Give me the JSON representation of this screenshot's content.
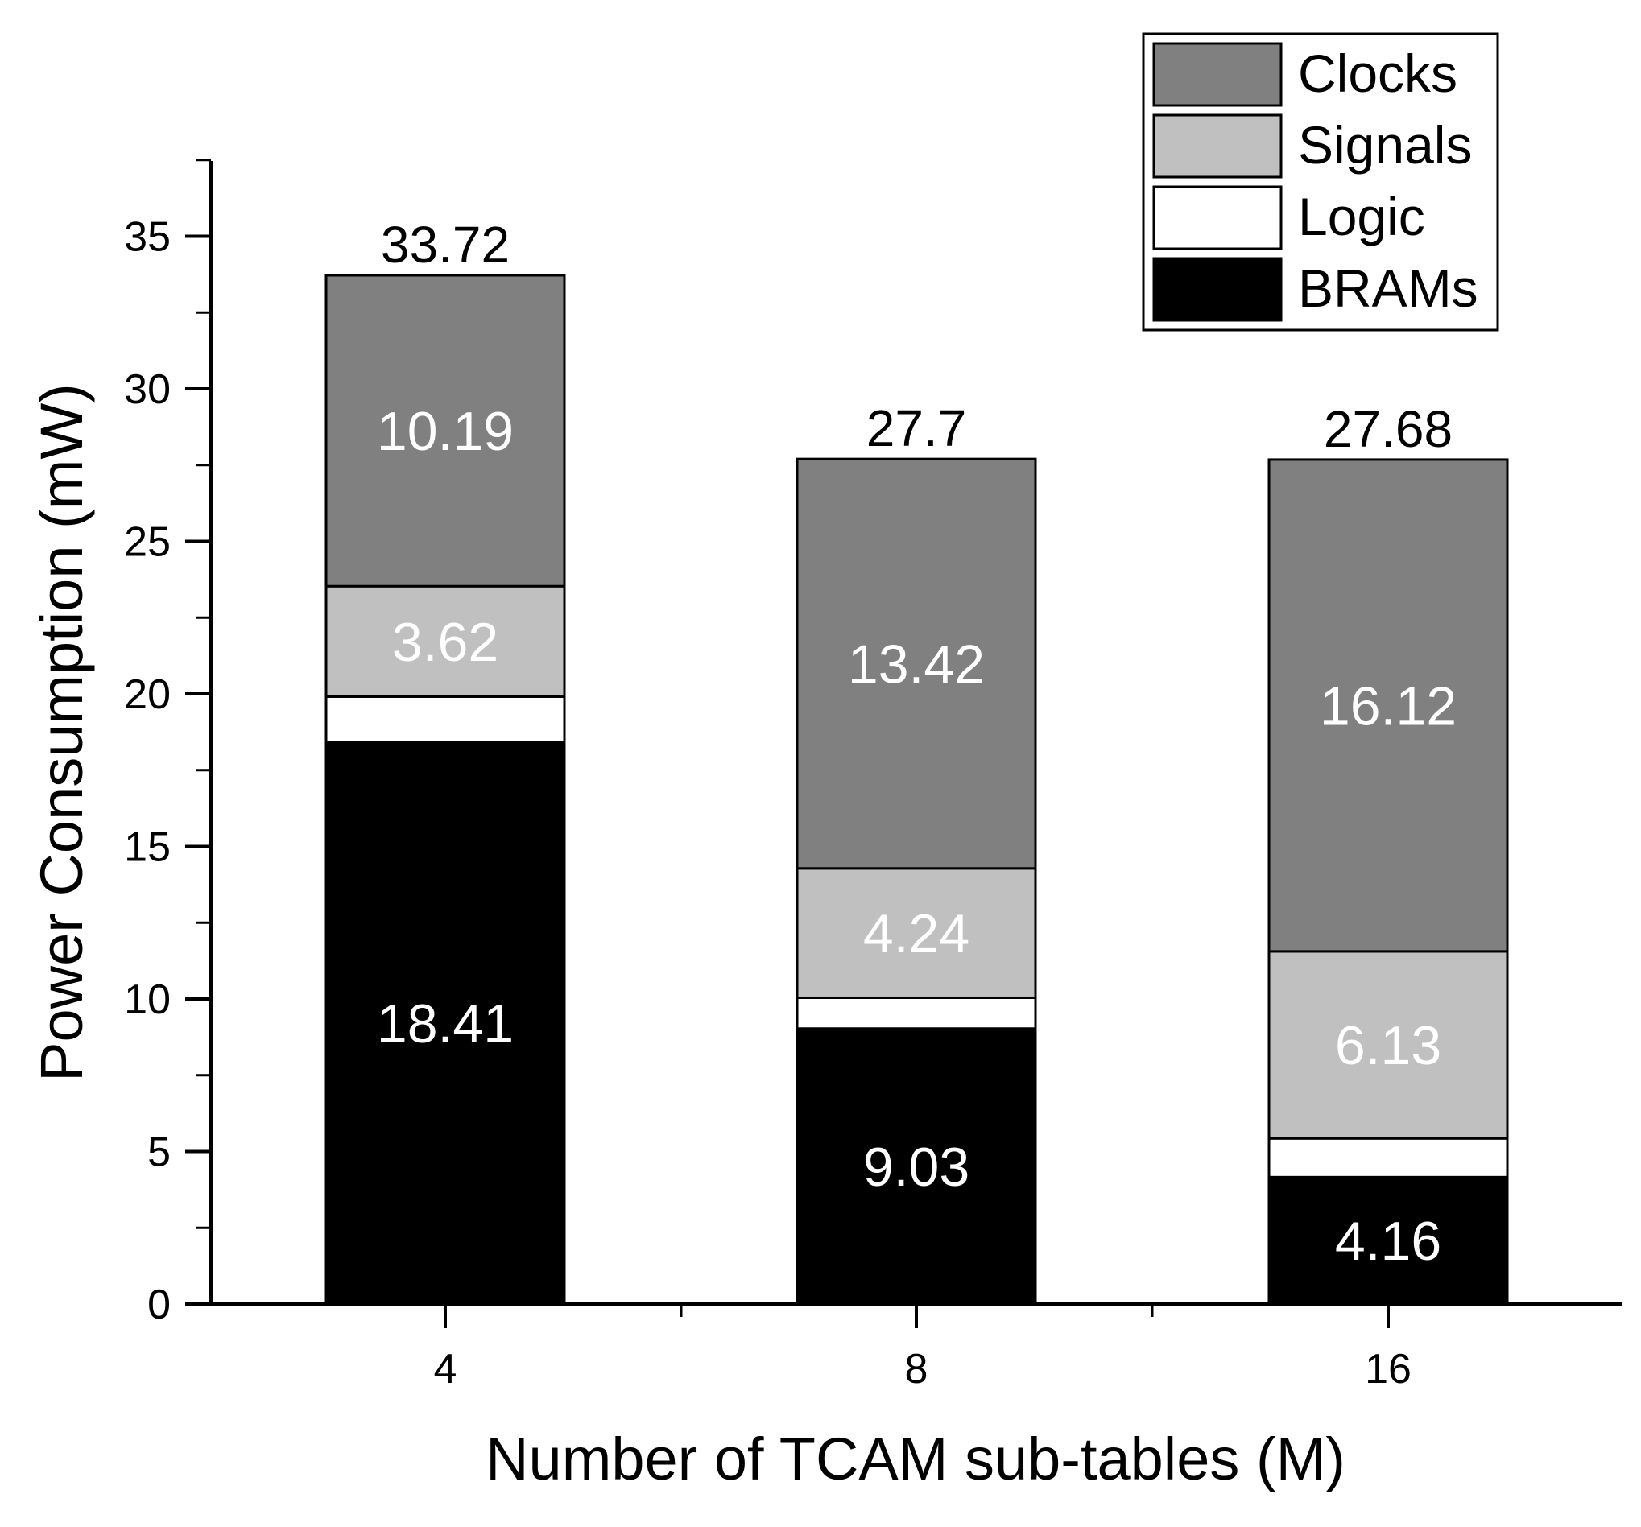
{
  "chart_data": {
    "type": "bar",
    "stacked": true,
    "categories": [
      "4",
      "8",
      "16"
    ],
    "series": [
      {
        "name": "BRAMs",
        "values": [
          18.41,
          9.03,
          4.16
        ],
        "color": "#000000",
        "label_color": "#ffffff",
        "labels": [
          "18.41",
          "9.03",
          "4.16"
        ]
      },
      {
        "name": "Logic",
        "values": [
          1.5,
          1.01,
          1.27
        ],
        "color": "#ffffff",
        "label_color": "#ffffff",
        "labels": [
          "",
          "",
          ""
        ]
      },
      {
        "name": "Signals",
        "values": [
          3.62,
          4.24,
          6.13
        ],
        "color": "#c0c0c0",
        "label_color": "#ffffff",
        "labels": [
          "3.62",
          "4.24",
          "6.13"
        ]
      },
      {
        "name": "Clocks",
        "values": [
          10.19,
          13.42,
          16.12
        ],
        "color": "#808080",
        "label_color": "#ffffff",
        "labels": [
          "10.19",
          "13.42",
          "16.12"
        ]
      }
    ],
    "totals": [
      33.72,
      27.7,
      27.68
    ],
    "total_labels": [
      "33.72",
      "27.7",
      "27.68"
    ],
    "xlabel": "Number of TCAM sub-tables (M)",
    "ylabel": "Power Consumption (mW)",
    "ylim": [
      0,
      37.5
    ],
    "yticks": [
      0,
      5,
      10,
      15,
      20,
      25,
      30,
      35
    ],
    "ytick_labels": [
      "0",
      "5",
      "10",
      "15",
      "20",
      "25",
      "30",
      "35"
    ],
    "legend_order": [
      "Clocks",
      "Signals",
      "Logic",
      "BRAMs"
    ],
    "legend_position": "top-right",
    "grid": false
  }
}
